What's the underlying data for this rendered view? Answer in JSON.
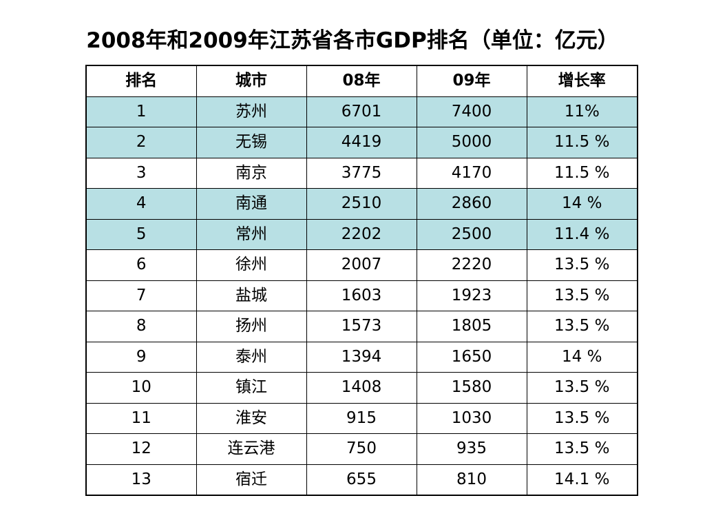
{
  "title": "2008年和2009年江苏省各市GDP排名（单位：亿元）",
  "table": {
    "headers": [
      "排名",
      "城市",
      "08年",
      "09年",
      "增长率"
    ],
    "rows": [
      [
        "1",
        "苏州",
        "6701",
        "7400",
        "11%"
      ],
      [
        "2",
        "无锡",
        "4419",
        "5000",
        "11.5 %"
      ],
      [
        "3",
        "南京",
        "3775",
        "4170",
        "11.5 %"
      ],
      [
        "4",
        "南通",
        "2510",
        "2860",
        "14 %"
      ],
      [
        "5",
        "常州",
        "2202",
        "2500",
        "11.4 %"
      ],
      [
        "6",
        "徐州",
        "2007",
        "2220",
        "13.5 %"
      ],
      [
        "7",
        "盐城",
        "1603",
        "1923",
        "13.5 %"
      ],
      [
        "8",
        "扬州",
        "1573",
        "1805",
        "13.5 %"
      ],
      [
        "9",
        "泰州",
        "1394",
        "1650",
        "14 %"
      ],
      [
        "10",
        "镇江",
        "1408",
        "1580",
        "13.5 %"
      ],
      [
        "11",
        "淮安",
        "915",
        "1030",
        "13.5 %"
      ],
      [
        "12",
        "连云港",
        "750",
        "935",
        "13.5 %"
      ],
      [
        "13",
        "宿迁",
        "655",
        "810",
        "14.1 %"
      ]
    ],
    "highlighted_rows": [
      0,
      1,
      3,
      4
    ],
    "highlight_color": "#b8e0e4",
    "border_color": "#000000"
  }
}
